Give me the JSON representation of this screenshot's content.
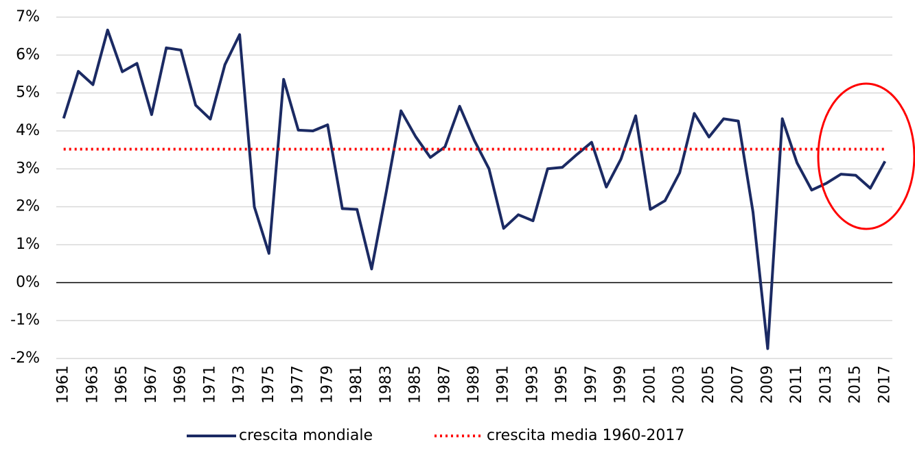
{
  "chart_data": {
    "type": "line",
    "categories": [
      "1961",
      null,
      "1963",
      null,
      "1965",
      null,
      "1967",
      null,
      "1969",
      null,
      "1971",
      null,
      "1973",
      null,
      "1975",
      null,
      "1977",
      null,
      "1979",
      null,
      "1981",
      null,
      "1983",
      null,
      "1985",
      null,
      "1987",
      null,
      "1989",
      null,
      "1991",
      null,
      "1993",
      null,
      "1995",
      null,
      "1997",
      null,
      "1999",
      null,
      "2001",
      null,
      "2003",
      null,
      "2005",
      null,
      "2007",
      null,
      "2009",
      null,
      "2011",
      null,
      "2013",
      null,
      "2015",
      null,
      "2017"
    ],
    "series": [
      {
        "name": "crescita mondiale",
        "color": "#1b2a63",
        "style": "solid",
        "values": [
          4.33,
          5.57,
          5.22,
          6.66,
          5.56,
          5.78,
          4.43,
          6.19,
          6.13,
          4.68,
          4.31,
          5.75,
          6.54,
          2.0,
          0.77,
          5.36,
          4.02,
          4.0,
          4.16,
          1.95,
          1.93,
          0.36,
          2.4,
          4.53,
          3.85,
          3.3,
          3.58,
          4.65,
          3.75,
          3.0,
          1.43,
          1.79,
          1.63,
          3.0,
          3.04,
          3.38,
          3.7,
          2.52,
          3.26,
          4.4,
          1.93,
          2.16,
          2.9,
          4.46,
          3.84,
          4.32,
          4.26,
          1.86,
          -1.74,
          4.32,
          3.16,
          2.44,
          2.62,
          2.86,
          2.83,
          2.49,
          3.2
        ]
      },
      {
        "name": "crescita media 1960-2017",
        "color": "#ff0000",
        "style": "dotted",
        "values": [
          3.52,
          3.52,
          3.52,
          3.52,
          3.52,
          3.52,
          3.52,
          3.52,
          3.52,
          3.52,
          3.52,
          3.52,
          3.52,
          3.52,
          3.52,
          3.52,
          3.52,
          3.52,
          3.52,
          3.52,
          3.52,
          3.52,
          3.52,
          3.52,
          3.52,
          3.52,
          3.52,
          3.52,
          3.52,
          3.52,
          3.52,
          3.52,
          3.52,
          3.52,
          3.52,
          3.52,
          3.52,
          3.52,
          3.52,
          3.52,
          3.52,
          3.52,
          3.52,
          3.52,
          3.52,
          3.52,
          3.52,
          3.52,
          3.52,
          3.52,
          3.52,
          3.52,
          3.52,
          3.52,
          3.52,
          3.52,
          3.52
        ]
      }
    ],
    "ylim": [
      -2,
      7
    ],
    "yticks": [
      {
        "value": -2,
        "label": "-2%"
      },
      {
        "value": -1,
        "label": "-1%"
      },
      {
        "value": 0,
        "label": "0%"
      },
      {
        "value": 1,
        "label": "1%"
      },
      {
        "value": 2,
        "label": "2%"
      },
      {
        "value": 3,
        "label": "3%"
      },
      {
        "value": 4,
        "label": "4%"
      },
      {
        "value": 5,
        "label": "5%"
      },
      {
        "value": 6,
        "label": "6%"
      },
      {
        "value": 7,
        "label": "7%"
      }
    ],
    "grid": true,
    "legend": "bottom"
  }
}
